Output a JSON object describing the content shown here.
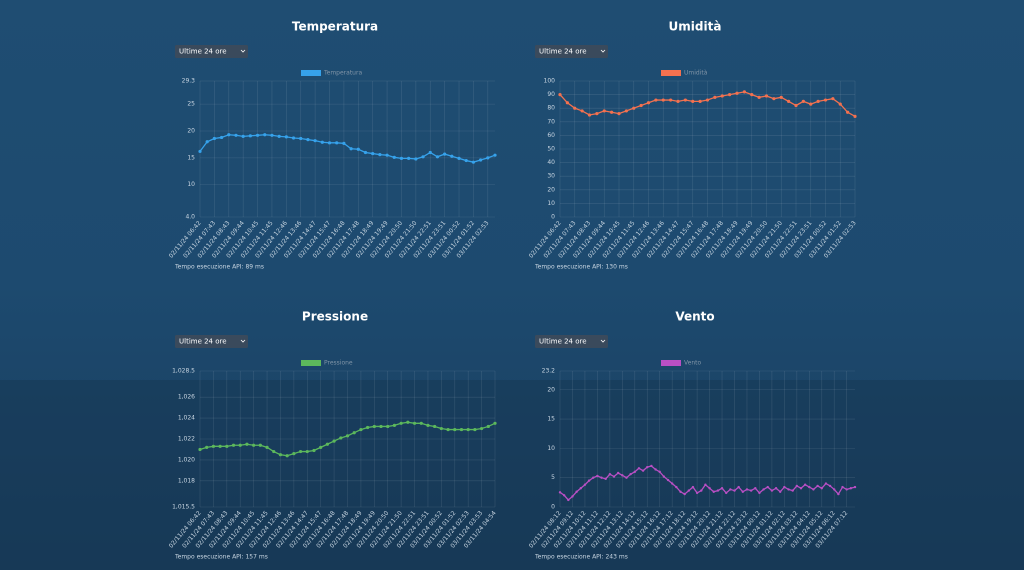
{
  "chart_data": [
    {
      "type": "line",
      "title": "Temperatura",
      "selector": "Ultime 24 ore",
      "footer": "Tempo esecuzione API: 89 ms",
      "categories": [
        "02/11/24 06:42",
        null,
        "02/11/24 07:43",
        null,
        "02/11/24 08:43",
        null,
        "02/11/24 09:44",
        null,
        "02/11/24 10:45",
        null,
        "02/11/24 11:45",
        null,
        "02/11/24 12:46",
        null,
        "02/11/24 13:46",
        null,
        "02/11/24 14:47",
        null,
        "02/11/24 15:47",
        null,
        "02/11/24 16:48",
        null,
        "02/11/24 17:48",
        null,
        "02/11/24 18:49",
        null,
        "02/11/24 19:49",
        null,
        "02/11/24 20:50",
        null,
        "02/11/24 21:50",
        null,
        "02/11/24 22:51",
        null,
        "02/11/24 23:51",
        null,
        "03/11/24 00:52",
        null,
        "03/11/24 01:52",
        null,
        "03/11/24 02:53",
        null
      ],
      "series": [
        {
          "name": "Temperatura",
          "color": "#36a2eb",
          "values": [
            16.2,
            18,
            18.6,
            18.8,
            19.3,
            19.2,
            19.0,
            19.1,
            19.2,
            19.3,
            19.2,
            19.0,
            18.9,
            18.7,
            18.6,
            18.4,
            18.2,
            17.9,
            17.8,
            17.8,
            17.7,
            16.7,
            16.6,
            16.0,
            15.8,
            15.6,
            15.5,
            15.1,
            14.9,
            14.9,
            14.8,
            15.2,
            16.0,
            15.2,
            15.7,
            15.3,
            14.9,
            14.5,
            14.2,
            14.6,
            15.0,
            15.5
          ]
        }
      ],
      "ylim": [
        4.0,
        29.3
      ],
      "yticks": [
        {
          "value": 4.0,
          "label": "4.0"
        },
        10,
        15,
        20,
        25,
        29.3
      ],
      "grid": true
    },
    {
      "type": "line",
      "title": "Umidità",
      "selector": "Ultime 24 ore",
      "footer": "Tempo esecuzione API: 130 ms",
      "categories": [
        "02/11/24 06:42",
        null,
        "02/11/24 07:43",
        null,
        "02/11/24 08:43",
        null,
        "02/11/24 09:44",
        null,
        "02/11/24 10:45",
        null,
        "02/11/24 11:45",
        null,
        "02/11/24 12:46",
        null,
        "02/11/24 13:46",
        null,
        "02/11/24 14:47",
        null,
        "02/11/24 15:47",
        null,
        "02/11/24 16:48",
        null,
        "02/11/24 17:48",
        null,
        "02/11/24 18:49",
        null,
        "02/11/24 19:49",
        null,
        "02/11/24 20:50",
        null,
        "02/11/24 21:50",
        null,
        "02/11/24 22:51",
        null,
        "02/11/24 23:51",
        null,
        "03/11/24 00:52",
        null,
        "03/11/24 01:52",
        null,
        "03/11/24 02:53"
      ],
      "series": [
        {
          "name": "Umidità",
          "color": "#f4714f",
          "values": [
            90,
            84,
            80,
            78,
            75,
            76,
            78,
            77,
            76,
            78,
            80,
            82,
            84,
            86,
            86,
            86,
            85,
            86,
            85,
            85,
            86,
            88,
            89,
            90,
            91,
            92,
            90,
            88,
            89,
            87,
            88,
            85,
            82,
            85,
            83,
            85,
            86,
            87,
            83,
            77,
            74
          ]
        }
      ],
      "ylim": [
        0,
        100
      ],
      "yticks": [
        0,
        10,
        20,
        30,
        40,
        50,
        60,
        70,
        80,
        90,
        100
      ],
      "grid": true
    },
    {
      "type": "line",
      "title": "Pressione",
      "selector": "Ultime 24 ore",
      "footer": "Tempo esecuzione API: 157 ms",
      "categories": [
        "02/11/24 06:42",
        null,
        "02/11/24 07:43",
        null,
        "02/11/24 08:43",
        null,
        "02/11/24 09:44",
        null,
        "02/11/24 10:45",
        null,
        "02/11/24 11:45",
        null,
        "02/11/24 12:46",
        null,
        "02/11/24 13:46",
        null,
        "02/11/24 14:47",
        null,
        "02/11/24 15:47",
        null,
        "02/11/24 16:48",
        null,
        "02/11/24 17:48",
        null,
        "02/11/24 18:49",
        null,
        "02/11/24 19:49",
        null,
        "02/11/24 20:50",
        null,
        "02/11/24 21:50",
        null,
        "02/11/24 22:51",
        null,
        "02/11/24 23:51",
        null,
        "03/11/24 00:52",
        null,
        "03/11/24 01:52",
        null,
        "03/11/24 02:53",
        null,
        "03/11/24 03:53",
        null,
        "03/11/24 04:54"
      ],
      "series": [
        {
          "name": "Pressione",
          "color": "#5cb85c",
          "values": [
            1021.0,
            1021.2,
            1021.3,
            1021.3,
            1021.3,
            1021.4,
            1021.4,
            1021.5,
            1021.4,
            1021.4,
            1021.2,
            1020.8,
            1020.5,
            1020.4,
            1020.6,
            1020.8,
            1020.8,
            1020.9,
            1021.2,
            1021.5,
            1021.8,
            1022.1,
            1022.3,
            1022.6,
            1022.9,
            1023.1,
            1023.2,
            1023.2,
            1023.2,
            1023.3,
            1023.5,
            1023.6,
            1023.5,
            1023.5,
            1023.3,
            1023.2,
            1023.0,
            1022.9,
            1022.9,
            1022.9,
            1022.9,
            1022.9,
            1023.0,
            1023.2,
            1023.5
          ]
        }
      ],
      "ylim": [
        1015.5,
        1028.5
      ],
      "yticks": [
        {
          "value": 1015.5,
          "label": "1,015.5"
        },
        {
          "value": 1018,
          "label": "1,018"
        },
        {
          "value": 1020,
          "label": "1,020"
        },
        {
          "value": 1022,
          "label": "1,022"
        },
        {
          "value": 1024,
          "label": "1,024"
        },
        {
          "value": 1026,
          "label": "1,026"
        },
        {
          "value": 1028.5,
          "label": "1,028.5"
        }
      ],
      "grid": true
    },
    {
      "type": "line",
      "title": "Vento",
      "selector": "Ultime 24 ore",
      "footer": "Tempo esecuzione API: 243 ms",
      "categories": [
        "02/11/24 08:12",
        null,
        null,
        "02/11/24 09:12",
        null,
        null,
        "02/11/24 10:12",
        null,
        null,
        "02/11/24 11:12",
        null,
        null,
        "02/11/24 12:12",
        null,
        null,
        "02/11/24 13:12",
        null,
        null,
        "02/11/24 14:12",
        null,
        null,
        "02/11/24 15:12",
        null,
        null,
        "02/11/24 16:12",
        null,
        null,
        "02/11/24 17:12",
        null,
        null,
        "02/11/24 18:12",
        null,
        null,
        "02/11/24 19:12",
        null,
        null,
        "02/11/24 20:12",
        null,
        null,
        "02/11/24 21:12",
        null,
        null,
        "02/11/24 22:12",
        null,
        null,
        "02/11/24 23:12",
        null,
        null,
        "03/11/24 00:12",
        null,
        null,
        "03/11/24 01:12",
        null,
        null,
        "03/11/24 02:12",
        null,
        null,
        "03/11/24 03:12",
        null,
        null,
        "03/11/24 04:12",
        null,
        null,
        "03/11/24 05:12",
        null,
        null,
        "03/11/24 06:12",
        null,
        null,
        "03/11/24 07:12",
        null,
        null
      ],
      "series": [
        {
          "name": "Vento",
          "color": "#b94fc4",
          "values": [
            2.5,
            2.0,
            1.2,
            1.8,
            2.6,
            3.2,
            3.8,
            4.5,
            5.0,
            5.3,
            5.0,
            4.8,
            5.6,
            5.2,
            5.8,
            5.4,
            5.0,
            5.6,
            6.0,
            6.6,
            6.2,
            6.8,
            7.0,
            6.4,
            6.0,
            5.2,
            4.6,
            4.0,
            3.4,
            2.6,
            2.2,
            2.8,
            3.4,
            2.4,
            2.8,
            3.8,
            3.2,
            2.6,
            2.8,
            3.2,
            2.4,
            3.0,
            2.8,
            3.4,
            2.6,
            3.0,
            2.8,
            3.2,
            2.4,
            3.0,
            3.4,
            2.8,
            3.2,
            2.6,
            3.4,
            3.0,
            2.8,
            3.6,
            3.2,
            3.8,
            3.4,
            3.0,
            3.6,
            3.2,
            4.0,
            3.6,
            3.0,
            2.2,
            3.4,
            3.0,
            3.2,
            3.4
          ]
        }
      ],
      "ylim": [
        0,
        23.2
      ],
      "yticks": [
        0,
        5,
        10,
        15,
        20,
        23.2
      ],
      "grid": true
    }
  ]
}
